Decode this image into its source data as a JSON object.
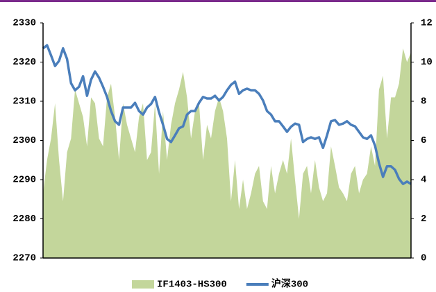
{
  "chart_data": {
    "type": "combo",
    "ylim": [
      2270,
      2330
    ],
    "yticks": [
      2270,
      2280,
      2290,
      2300,
      2310,
      2320,
      2330
    ],
    "y2lim": [
      0,
      12
    ],
    "y2ticks": [
      0,
      2,
      4,
      6,
      8,
      10,
      12
    ],
    "legend": "bottom",
    "series": [
      {
        "name": "IF1403-HS300",
        "type": "area",
        "axis": "y2",
        "color": "#c3d69b",
        "values": [
          3.3,
          5.0,
          6.1,
          7.9,
          5.0,
          2.9,
          5.4,
          6.1,
          8.6,
          7.9,
          7.2,
          5.7,
          8.2,
          7.9,
          6.1,
          5.7,
          8.2,
          8.9,
          7.2,
          5.0,
          7.9,
          6.8,
          6.1,
          5.4,
          7.2,
          7.9,
          5.0,
          5.4,
          7.9,
          4.3,
          7.5,
          5.0,
          6.8,
          7.9,
          8.6,
          9.5,
          8.2,
          6.1,
          7.5,
          7.9,
          5.0,
          6.8,
          6.1,
          7.5,
          8.2,
          7.5,
          6.1,
          2.9,
          5.0,
          2.5,
          4.0,
          2.5,
          3.3,
          4.3,
          4.7,
          2.9,
          2.5,
          4.7,
          3.3,
          4.3,
          5.0,
          4.3,
          6.1,
          4.0,
          2.0,
          4.3,
          4.7,
          3.3,
          5.0,
          3.6,
          2.9,
          3.3,
          5.7,
          4.7,
          3.6,
          3.3,
          2.9,
          4.3,
          4.7,
          3.3,
          4.0,
          4.3,
          5.7,
          4.7,
          8.6,
          9.3,
          6.1,
          8.2,
          8.2,
          8.9,
          10.7,
          10.0,
          10.5
        ]
      },
      {
        "name": "沪深300",
        "type": "line",
        "color": "#4a7ebb",
        "values": [
          2323.5,
          2324.3,
          2321.7,
          2319.0,
          2320.3,
          2323.5,
          2320.8,
          2314.6,
          2312.8,
          2313.7,
          2316.4,
          2311.4,
          2315.5,
          2317.6,
          2316.0,
          2313.7,
          2311.1,
          2307.5,
          2304.9,
          2304.0,
          2308.4,
          2308.4,
          2308.4,
          2309.6,
          2307.5,
          2306.6,
          2308.4,
          2309.3,
          2311.1,
          2307.2,
          2304.0,
          2300.4,
          2299.6,
          2301.3,
          2303.1,
          2303.6,
          2306.6,
          2307.5,
          2307.5,
          2309.6,
          2311.1,
          2310.7,
          2310.7,
          2311.4,
          2310.2,
          2311.1,
          2312.8,
          2314.2,
          2315.0,
          2311.9,
          2312.8,
          2313.2,
          2312.8,
          2312.8,
          2311.9,
          2310.2,
          2307.5,
          2306.6,
          2304.9,
          2304.9,
          2303.6,
          2302.2,
          2303.5,
          2304.3,
          2304.0,
          2299.6,
          2300.4,
          2300.8,
          2300.4,
          2300.8,
          2298.1,
          2301.3,
          2304.9,
          2305.2,
          2304.0,
          2304.3,
          2304.9,
          2304.0,
          2303.6,
          2302.2,
          2300.8,
          2300.4,
          2301.3,
          2298.7,
          2294.2,
          2290.7,
          2293.4,
          2293.4,
          2292.5,
          2290.2,
          2288.9,
          2289.5,
          2288.9
        ]
      }
    ]
  }
}
